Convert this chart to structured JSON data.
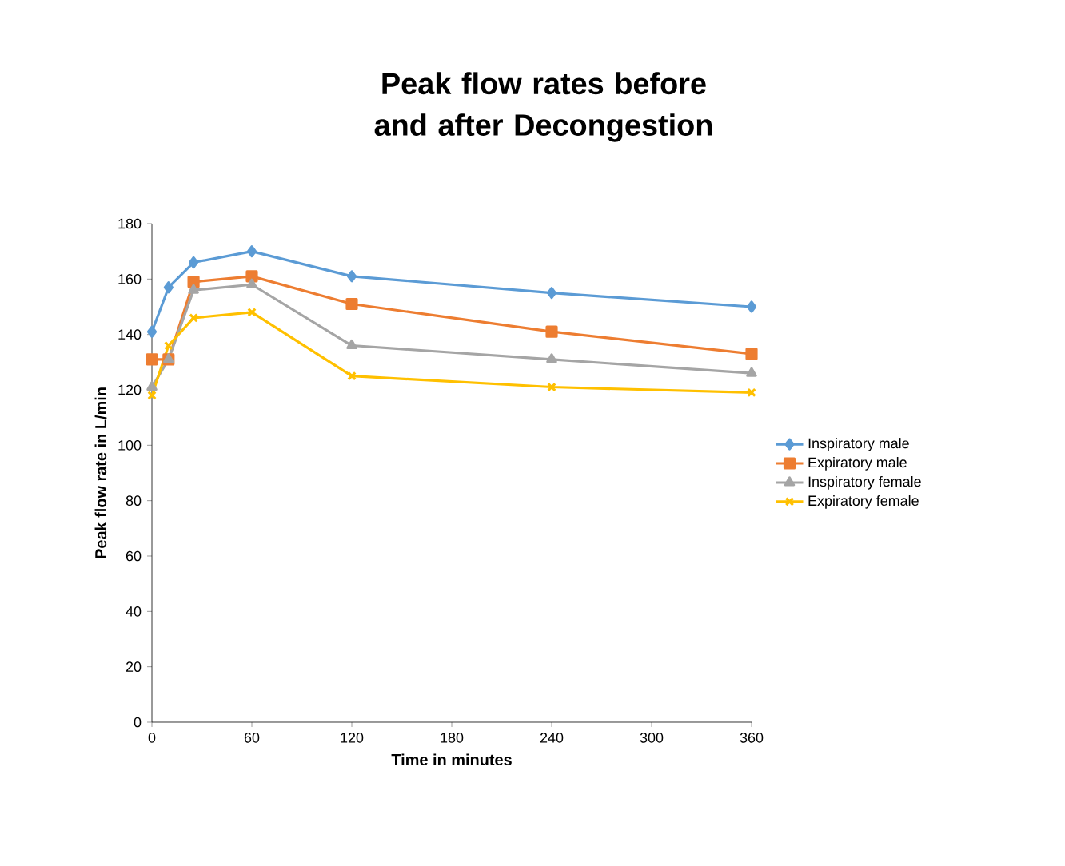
{
  "chart_data": {
    "type": "line",
    "title": "Peak flow rates before and after Decongestion",
    "xlabel": "Time in minutes",
    "ylabel": "Peak flow rate in L/min",
    "x": [
      0,
      10,
      25,
      60,
      120,
      240,
      360
    ],
    "series": [
      {
        "name": "Inspiratory male",
        "color": "#5b9bd5",
        "marker": "diamond",
        "values": [
          141,
          157,
          166,
          170,
          161,
          155,
          150
        ]
      },
      {
        "name": "Expiratory male",
        "color": "#ed7d31",
        "marker": "square",
        "values": [
          131,
          131,
          159,
          161,
          151,
          141,
          133
        ]
      },
      {
        "name": "Inspiratory female",
        "color": "#a5a5a5",
        "marker": "triangle",
        "values": [
          121,
          131,
          156,
          158,
          136,
          131,
          126
        ]
      },
      {
        "name": "Expiratory female",
        "color": "#ffc000",
        "marker": "cross",
        "values": [
          118,
          136,
          146,
          148,
          125,
          121,
          119
        ]
      }
    ],
    "xlim": [
      0,
      360
    ],
    "xticks": [
      0,
      60,
      120,
      180,
      240,
      300,
      360
    ],
    "ylim": [
      0,
      180
    ],
    "yticks": [
      0,
      20,
      40,
      60,
      80,
      100,
      120,
      140,
      160,
      180
    ],
    "grid": false,
    "legend": "right",
    "line_style": "solid"
  }
}
